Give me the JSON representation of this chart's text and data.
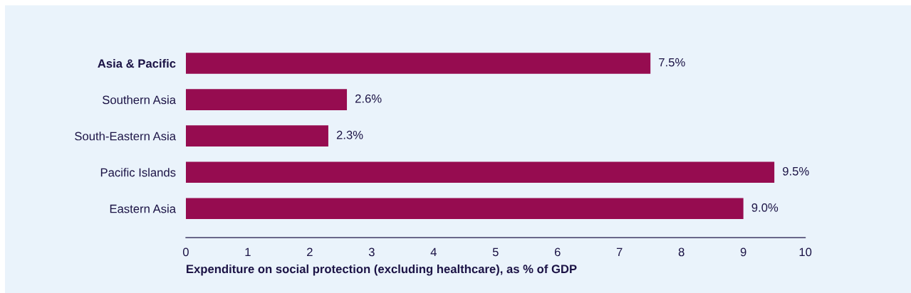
{
  "chart_data": {
    "type": "bar",
    "orientation": "horizontal",
    "categories": [
      "Asia & Pacific",
      "Southern Asia",
      "South-Eastern Asia",
      "Pacific Islands",
      "Eastern Asia"
    ],
    "values": [
      7.5,
      2.6,
      2.3,
      9.5,
      9.0
    ],
    "value_labels": [
      "7.5%",
      "2.6%",
      "2.3%",
      "9.5%",
      "9.0%"
    ],
    "color": "#960c50",
    "xlim": [
      0,
      10
    ],
    "xticks": [
      0,
      1,
      2,
      3,
      4,
      5,
      6,
      7,
      8,
      9,
      10
    ],
    "xlabel": "Expenditure on social protection (excluding healthcare), as % of GDP",
    "grid": false,
    "legend": false
  }
}
